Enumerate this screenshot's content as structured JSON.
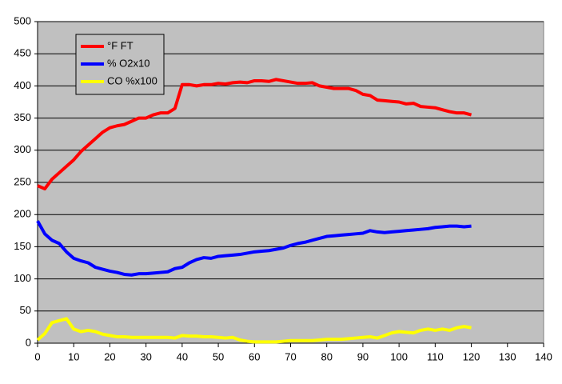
{
  "chart_data": {
    "type": "line",
    "x": [
      0,
      2,
      4,
      6,
      8,
      10,
      12,
      14,
      16,
      18,
      20,
      22,
      24,
      26,
      28,
      30,
      32,
      34,
      36,
      38,
      40,
      42,
      44,
      46,
      48,
      50,
      52,
      54,
      56,
      58,
      60,
      62,
      64,
      66,
      68,
      70,
      72,
      74,
      76,
      78,
      80,
      82,
      84,
      86,
      88,
      90,
      92,
      94,
      96,
      98,
      100,
      102,
      104,
      106,
      108,
      110,
      112,
      114,
      116,
      118,
      120
    ],
    "series": [
      {
        "name": "°F FT",
        "color": "#ff0000",
        "values": [
          245,
          240,
          255,
          265,
          275,
          285,
          298,
          308,
          318,
          328,
          335,
          338,
          340,
          345,
          350,
          350,
          355,
          358,
          358,
          365,
          402,
          402,
          400,
          402,
          402,
          404,
          403,
          405,
          406,
          405,
          408,
          408,
          407,
          410,
          408,
          406,
          404,
          404,
          405,
          400,
          398,
          396,
          396,
          396,
          393,
          387,
          385,
          378,
          377,
          376,
          375,
          372,
          373,
          368,
          367,
          366,
          363,
          360,
          358,
          358,
          355
        ]
      },
      {
        "name": "% O2x10",
        "color": "#0000ff",
        "values": [
          190,
          170,
          160,
          155,
          142,
          132,
          128,
          125,
          118,
          115,
          112,
          110,
          107,
          106,
          108,
          108,
          109,
          110,
          111,
          116,
          118,
          125,
          130,
          133,
          132,
          135,
          136,
          137,
          138,
          140,
          142,
          143,
          144,
          146,
          148,
          152,
          155,
          157,
          160,
          163,
          166,
          167,
          168,
          169,
          170,
          171,
          175,
          173,
          172,
          173,
          174,
          175,
          176,
          177,
          178,
          180,
          181,
          182,
          182,
          181,
          182
        ]
      },
      {
        "name": "CO %x100",
        "color": "#ffff00",
        "values": [
          5,
          15,
          32,
          35,
          38,
          22,
          18,
          20,
          18,
          14,
          12,
          10,
          10,
          9,
          9,
          9,
          9,
          9,
          9,
          8,
          12,
          11,
          11,
          10,
          10,
          9,
          8,
          9,
          5,
          3,
          2,
          2,
          2,
          2,
          3,
          4,
          4,
          4,
          4,
          5,
          6,
          6,
          6,
          7,
          8,
          9,
          10,
          8,
          12,
          16,
          18,
          17,
          16,
          20,
          22,
          20,
          22,
          20,
          24,
          26,
          24
        ]
      }
    ],
    "xlim": [
      0,
      140
    ],
    "xticks": [
      0,
      10,
      20,
      30,
      40,
      50,
      60,
      70,
      80,
      90,
      100,
      110,
      120,
      130,
      140
    ],
    "ylim": [
      0,
      500
    ],
    "yticks": [
      0,
      50,
      100,
      150,
      200,
      250,
      300,
      350,
      400,
      450,
      500
    ],
    "grid": true,
    "plot_background": "#c0c0c0"
  }
}
